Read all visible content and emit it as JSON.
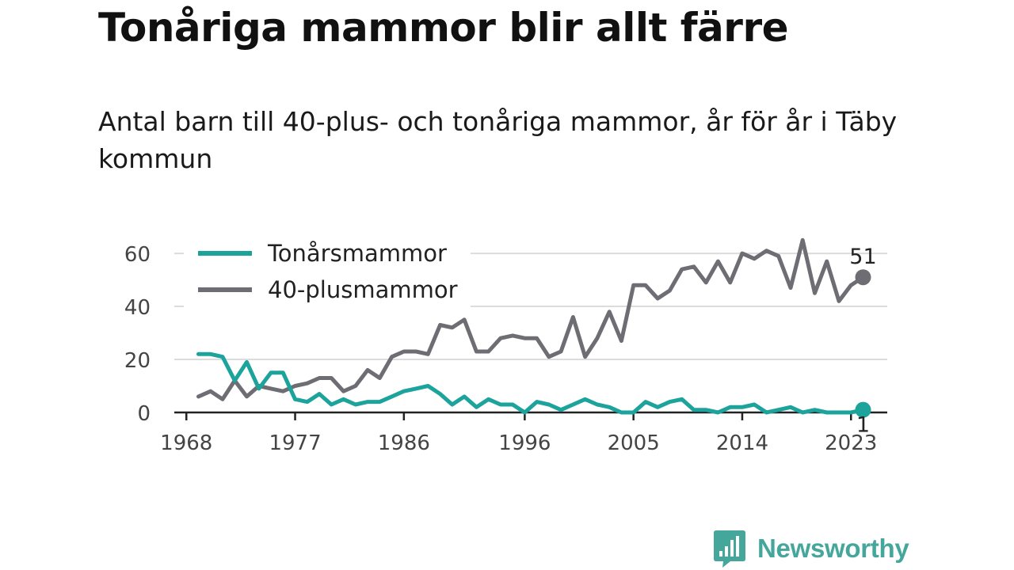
{
  "title": "Tonåriga mammor blir allt färre",
  "subtitle": "Antal barn till 40-plus- och tonåriga mammor, år för år i Täby kommun",
  "brand": {
    "name": "Newsworthy",
    "color": "#45a69c",
    "icon": "bar-chart-speech-bubble-icon"
  },
  "chart_data": {
    "type": "line",
    "title": "Tonåriga mammor blir allt färre",
    "subtitle": "Antal barn till 40-plus- och tonåriga mammor, år för år i Täby kommun",
    "xlabel": "",
    "ylabel": "",
    "x": [
      1969,
      1970,
      1971,
      1972,
      1973,
      1974,
      1975,
      1976,
      1977,
      1978,
      1979,
      1980,
      1981,
      1982,
      1983,
      1984,
      1985,
      1986,
      1987,
      1988,
      1989,
      1990,
      1991,
      1992,
      1993,
      1994,
      1995,
      1996,
      1997,
      1998,
      1999,
      2000,
      2001,
      2002,
      2003,
      2004,
      2005,
      2006,
      2007,
      2008,
      2009,
      2010,
      2011,
      2012,
      2013,
      2014,
      2015,
      2016,
      2017,
      2018,
      2019,
      2020,
      2021,
      2022,
      2023,
      2024
    ],
    "xlim": [
      1967,
      2026
    ],
    "ylim": [
      0,
      66
    ],
    "x_ticks": [
      1968,
      1977,
      1986,
      1996,
      2005,
      2014,
      2023
    ],
    "y_ticks": [
      0,
      20,
      40,
      60
    ],
    "grid": true,
    "legend": "top-left",
    "series": [
      {
        "name": "Tonårsmammor",
        "color": "#1ba39c",
        "values": [
          22,
          22,
          21,
          12,
          19,
          9,
          15,
          15,
          5,
          4,
          7,
          3,
          5,
          3,
          4,
          4,
          6,
          8,
          9,
          10,
          7,
          3,
          6,
          2,
          5,
          3,
          3,
          0,
          4,
          3,
          1,
          3,
          5,
          3,
          2,
          0,
          0,
          4,
          2,
          4,
          5,
          1,
          1,
          0,
          2,
          2,
          3,
          0,
          1,
          2,
          0,
          1,
          0,
          0,
          0,
          1
        ],
        "end_label": "1"
      },
      {
        "name": "40-plusmammor",
        "color": "#6d6d73",
        "values": [
          6,
          8,
          5,
          12,
          6,
          10,
          9,
          8,
          10,
          11,
          13,
          13,
          8,
          10,
          16,
          13,
          21,
          23,
          23,
          22,
          33,
          32,
          35,
          23,
          23,
          28,
          29,
          28,
          28,
          21,
          23,
          36,
          21,
          28,
          38,
          27,
          48,
          48,
          43,
          46,
          54,
          55,
          49,
          57,
          49,
          60,
          58,
          61,
          59,
          47,
          65,
          45,
          57,
          42,
          48,
          51
        ],
        "end_label": "51"
      }
    ]
  }
}
